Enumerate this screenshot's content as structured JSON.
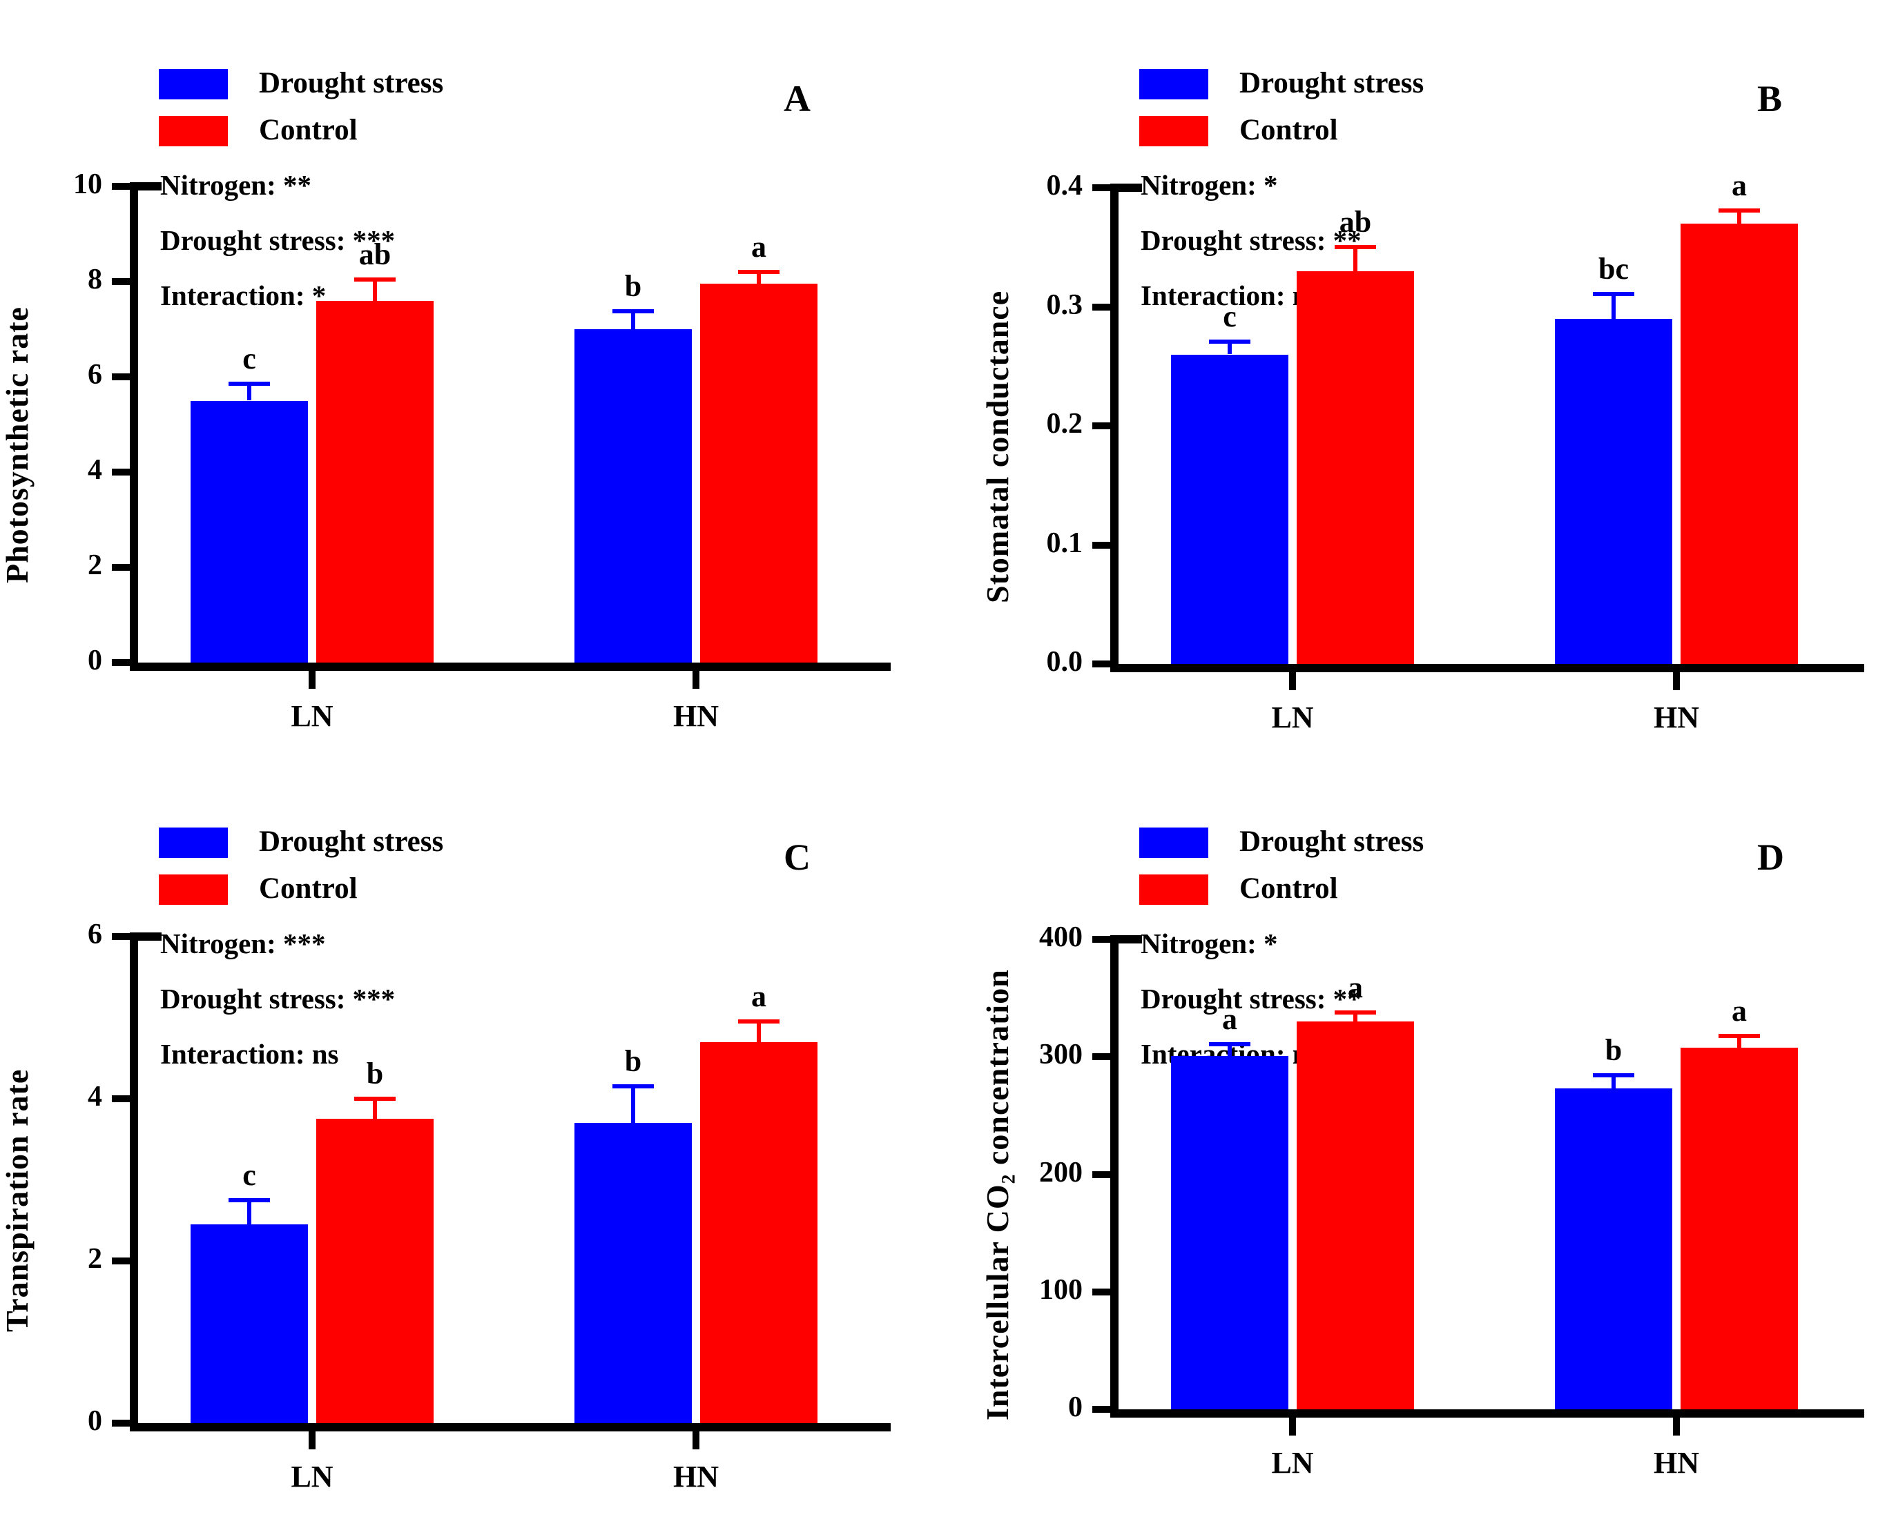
{
  "figure_title": "",
  "legend": {
    "items": [
      {
        "label": "Drought stress",
        "color": "#0000ff"
      },
      {
        "label": "Control",
        "color": "#ff0000"
      }
    ]
  },
  "colors": {
    "drought": "#0000ff",
    "control": "#ff0000",
    "axis": "#000000",
    "text": "#000000"
  },
  "chart_data": [
    {
      "type": "bar",
      "panel_label": "A",
      "ylabel": "Photosynthetic rate",
      "categories": [
        "LN",
        "HN"
      ],
      "series": [
        {
          "name": "Drought stress",
          "color": "#0000ff",
          "values": [
            5.5,
            7.0
          ],
          "errors": [
            0.35,
            0.38
          ],
          "letters": [
            "c",
            "b"
          ]
        },
        {
          "name": "Control",
          "color": "#ff0000",
          "values": [
            7.6,
            7.95
          ],
          "errors": [
            0.45,
            0.25
          ],
          "letters": [
            "ab",
            "a"
          ]
        }
      ],
      "stats": [
        "Nitrogen: **",
        "Drought stress: ***",
        "Interaction: *"
      ],
      "ylim": [
        0,
        10
      ],
      "yticks": [
        0,
        2,
        4,
        6,
        8,
        10
      ],
      "ytick_labels": [
        "0",
        "2",
        "4",
        "6",
        "8",
        "10"
      ],
      "grid": false,
      "legend_position": "top-left-inside"
    },
    {
      "type": "bar",
      "panel_label": "B",
      "ylabel": "Stomatal conductance",
      "categories": [
        "LN",
        "HN"
      ],
      "series": [
        {
          "name": "Drought stress",
          "color": "#0000ff",
          "values": [
            0.26,
            0.29
          ],
          "errors": [
            0.011,
            0.021
          ],
          "letters": [
            "c",
            "bc"
          ]
        },
        {
          "name": "Control",
          "color": "#ff0000",
          "values": [
            0.33,
            0.37
          ],
          "errors": [
            0.02,
            0.011
          ],
          "letters": [
            "ab",
            "a"
          ]
        }
      ],
      "stats": [
        "Nitrogen: *",
        "Drought stress: **",
        "Interaction: ns"
      ],
      "ylim": [
        0,
        0.4
      ],
      "yticks": [
        0,
        0.1,
        0.2,
        0.3,
        0.4
      ],
      "ytick_labels": [
        "0.0",
        "0.1",
        "0.2",
        "0.3",
        "0.4"
      ],
      "grid": false,
      "legend_position": "top-left-inside"
    },
    {
      "type": "bar",
      "panel_label": "C",
      "ylabel": "Transpiration rate",
      "categories": [
        "LN",
        "HN"
      ],
      "series": [
        {
          "name": "Drought stress",
          "color": "#0000ff",
          "values": [
            2.45,
            3.7
          ],
          "errors": [
            0.3,
            0.45
          ],
          "letters": [
            "c",
            "b"
          ]
        },
        {
          "name": "Control",
          "color": "#ff0000",
          "values": [
            3.75,
            4.7
          ],
          "errors": [
            0.25,
            0.25
          ],
          "letters": [
            "b",
            "a"
          ]
        }
      ],
      "stats": [
        "Nitrogen: ***",
        "Drought stress: ***",
        "Interaction: ns"
      ],
      "ylim": [
        0,
        6
      ],
      "yticks": [
        0,
        2,
        4,
        6
      ],
      "ytick_labels": [
        "0",
        "2",
        "4",
        "6"
      ],
      "grid": false,
      "legend_position": "top-left-inside"
    },
    {
      "type": "bar",
      "panel_label": "D",
      "ylabel": "Intercellular CO₂ concentration",
      "categories": [
        "LN",
        "HN"
      ],
      "series": [
        {
          "name": "Drought stress",
          "color": "#0000ff",
          "values": [
            301,
            273
          ],
          "errors": [
            10,
            11
          ],
          "letters": [
            "a",
            "b"
          ]
        },
        {
          "name": "Control",
          "color": "#ff0000",
          "values": [
            330,
            308
          ],
          "errors": [
            8,
            10
          ],
          "letters": [
            "a",
            "a"
          ]
        }
      ],
      "stats": [
        "Nitrogen: *",
        "Drought stress: **",
        "Interaction: ns"
      ],
      "ylim": [
        0,
        400
      ],
      "yticks": [
        0,
        100,
        200,
        300,
        400
      ],
      "ytick_labels": [
        "0",
        "100",
        "200",
        "300",
        "400"
      ],
      "grid": false,
      "legend_position": "top-left-inside"
    }
  ]
}
